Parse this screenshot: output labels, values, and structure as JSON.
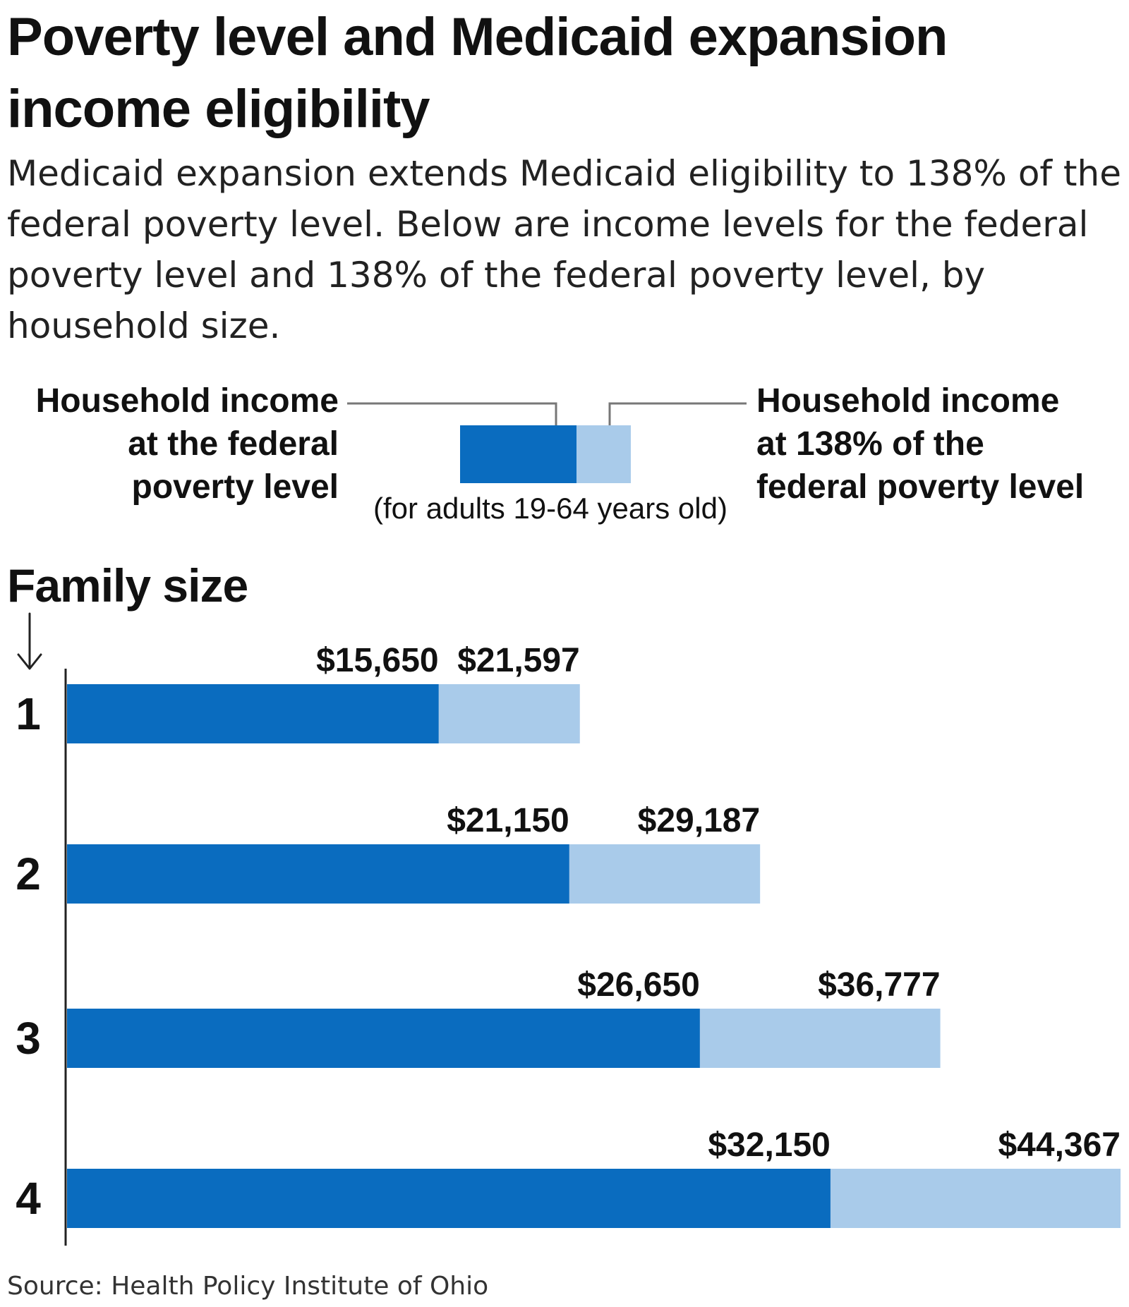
{
  "title": "Poverty level and Medicaid expansion income eligibility",
  "subtitle": "Medicaid expansion extends Medicaid eligibility to 138% of the federal poverty level. Below are income levels for the federal poverty level and 138% of the federal poverty level, by household size.",
  "legend": {
    "poverty_label": "Household income\nat the federal\npoverty level",
    "expansion_label": "Household income\nat 138% of the\nfederal poverty level",
    "note": "(for adults 19-64 years old)"
  },
  "axis_label": "Family size",
  "source": "Source: Health Policy Institute of Ohio",
  "colors": {
    "poverty": "#0a6cbf",
    "expansion": "#a9cbea",
    "axis": "#222222",
    "leader": "#777777"
  },
  "chart_data": {
    "type": "bar",
    "orientation": "horizontal",
    "stacked": "overlay",
    "categories": [
      "1",
      "2",
      "3",
      "4"
    ],
    "series": [
      {
        "name": "Household income at the federal poverty level",
        "values": [
          15650,
          21150,
          26650,
          32150
        ],
        "labels": [
          "$15,650",
          "$21,150",
          "$26,650",
          "$32,150"
        ]
      },
      {
        "name": "Household income at 138% of the federal poverty level",
        "values": [
          21597,
          29187,
          36777,
          44367
        ],
        "labels": [
          "$21,597",
          "$29,187",
          "$36,777",
          "$44,367"
        ]
      }
    ],
    "title": "Poverty level and Medicaid expansion income eligibility",
    "ylabel": "Family size",
    "xlim": [
      0,
      44367
    ],
    "grid": false,
    "legend": "top"
  }
}
